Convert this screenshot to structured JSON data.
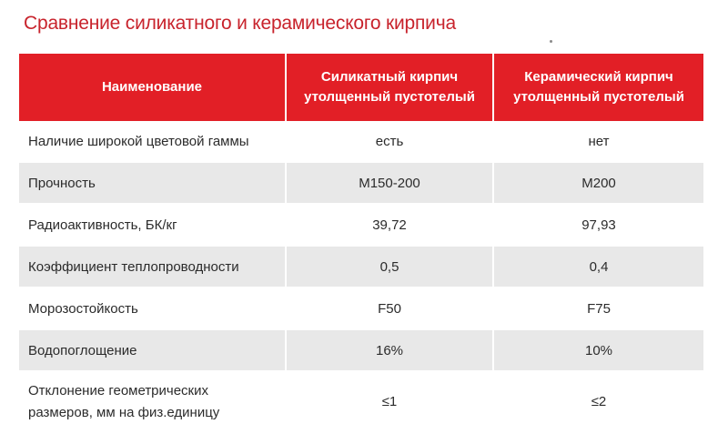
{
  "title": "Сравнение силикатного и керамического кирпича",
  "table": {
    "headers": {
      "name": "Наименование",
      "silicate_line1": "Силикатный кирпич",
      "silicate_line2": "утолщенный пустотелый",
      "ceramic_line1": "Керамический кирпич",
      "ceramic_line2": "утолщенный пустотелый"
    },
    "rows": [
      {
        "name": "Наличие широкой цветовой гаммы",
        "silicate": "есть",
        "ceramic": "нет"
      },
      {
        "name": "Прочность",
        "silicate": "М150-200",
        "ceramic": "М200"
      },
      {
        "name": "Радиоактивность, БК/кг",
        "silicate": "39,72",
        "ceramic": "97,93"
      },
      {
        "name": "Коэффициент теплопроводности",
        "silicate": "0,5",
        "ceramic": "0,4"
      },
      {
        "name": "Морозостойкость",
        "silicate": "F50",
        "ceramic": "F75"
      },
      {
        "name": "Водопоглощение",
        "silicate": "16%",
        "ceramic": "10%"
      },
      {
        "name_line1": "Отклонение геометрических",
        "name_line2": "размеров, мм на физ.единицу",
        "silicate": "≤1",
        "ceramic": "≤2"
      }
    ]
  },
  "colors": {
    "header_bg": "#e21f26",
    "title": "#c8232c",
    "stripe": "#e8e8e8"
  }
}
